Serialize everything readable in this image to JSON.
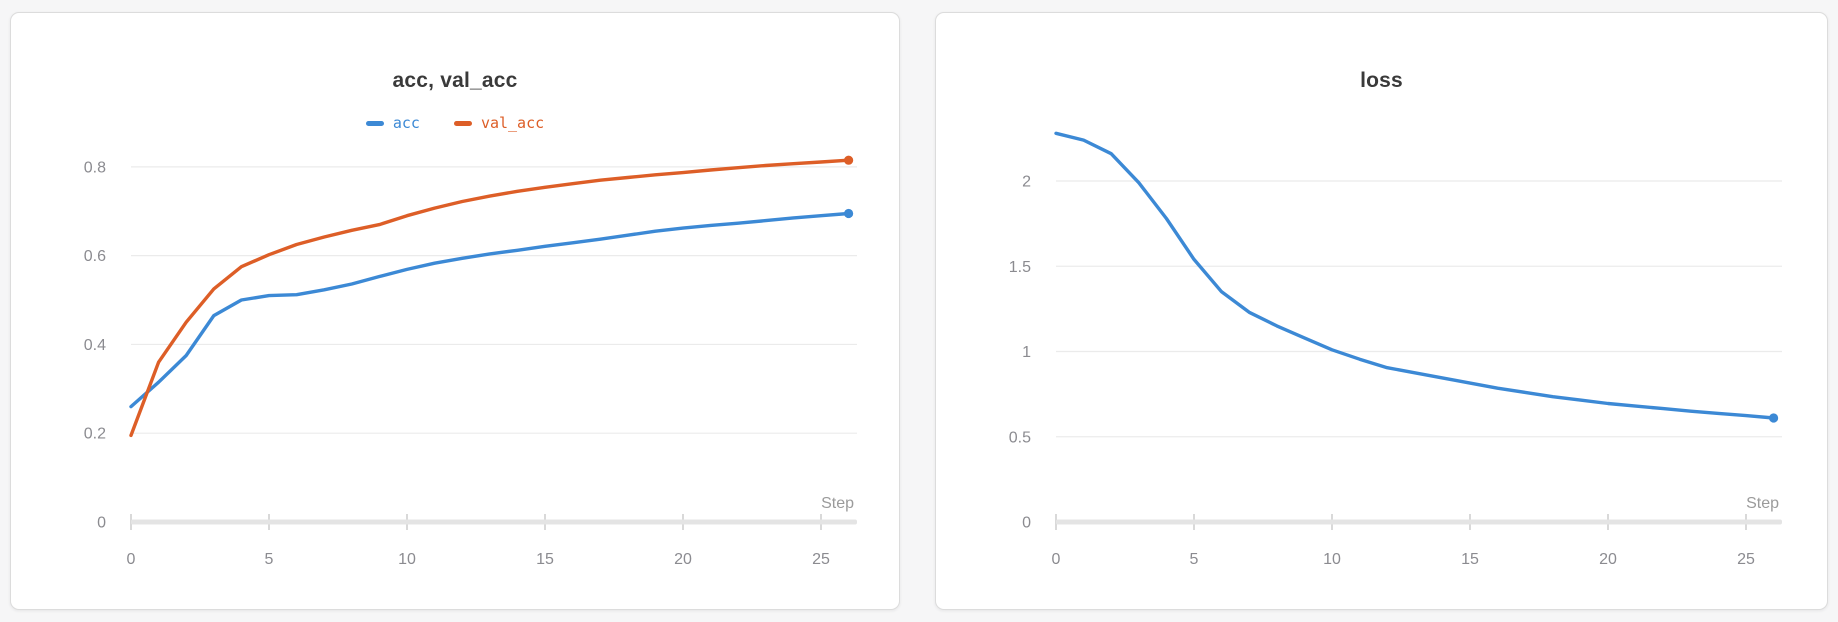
{
  "page": {
    "background": "#f6f6f7"
  },
  "panels": [
    {
      "title": "acc, val_acc",
      "has_legend": true
    },
    {
      "title": "loss",
      "has_legend": false
    }
  ],
  "chart_data": [
    {
      "type": "line",
      "title": "acc, val_acc",
      "xlabel": "Step",
      "ylabel": "",
      "xlim": [
        0,
        26.2
      ],
      "ylim": [
        0,
        0.8875
      ],
      "grid": "horizontal",
      "legend_position": "top-center",
      "x": [
        0,
        1,
        2,
        3,
        4,
        5,
        6,
        7,
        8,
        9,
        10,
        11,
        12,
        13,
        14,
        15,
        16,
        17,
        18,
        19,
        20,
        21,
        22,
        23,
        24,
        25,
        26
      ],
      "xticks": [
        {
          "value": 0,
          "label": "0"
        },
        {
          "value": 5,
          "label": "5"
        },
        {
          "value": 10,
          "label": "10"
        },
        {
          "value": 15,
          "label": "15"
        },
        {
          "value": 20,
          "label": "20"
        },
        {
          "value": 25,
          "label": "25"
        }
      ],
      "yticks": [
        {
          "value": 0,
          "label": "0"
        },
        {
          "value": 0.2,
          "label": "0.2"
        },
        {
          "value": 0.4,
          "label": "0.4"
        },
        {
          "value": 0.6,
          "label": "0.6"
        },
        {
          "value": 0.8,
          "label": "0.8"
        }
      ],
      "series": [
        {
          "name": "acc",
          "color": "#3c89d5",
          "values": [
            0.26,
            0.315,
            0.375,
            0.465,
            0.5,
            0.51,
            0.512,
            0.523,
            0.536,
            0.553,
            0.569,
            0.583,
            0.594,
            0.604,
            0.612,
            0.621,
            0.629,
            0.637,
            0.646,
            0.655,
            0.662,
            0.668,
            0.673,
            0.679,
            0.685,
            0.69,
            0.695
          ]
        },
        {
          "name": "val_acc",
          "color": "#dd5e27",
          "values": [
            0.195,
            0.36,
            0.45,
            0.525,
            0.575,
            0.602,
            0.625,
            0.642,
            0.657,
            0.67,
            0.69,
            0.707,
            0.722,
            0.734,
            0.745,
            0.754,
            0.762,
            0.77,
            0.776,
            0.782,
            0.787,
            0.793,
            0.798,
            0.803,
            0.807,
            0.811,
            0.815
          ]
        }
      ],
      "colors": {
        "grid": "#ebebeb",
        "axis_bar": "#e4e4e4",
        "tick_mark": "#d9d9d9",
        "tick_text": "#8b8b90",
        "step_text": "#9b9b9b"
      }
    },
    {
      "type": "line",
      "title": "loss",
      "xlabel": "Step",
      "ylabel": "",
      "xlim": [
        0,
        26.2
      ],
      "ylim": [
        0,
        2.311
      ],
      "grid": "horizontal",
      "legend_position": "none",
      "x": [
        0,
        1,
        2,
        3,
        4,
        5,
        6,
        7,
        8,
        9,
        10,
        11,
        12,
        13,
        14,
        15,
        16,
        17,
        18,
        19,
        20,
        21,
        22,
        23,
        24,
        25,
        26
      ],
      "xticks": [
        {
          "value": 0,
          "label": "0"
        },
        {
          "value": 5,
          "label": "5"
        },
        {
          "value": 10,
          "label": "10"
        },
        {
          "value": 15,
          "label": "15"
        },
        {
          "value": 20,
          "label": "20"
        },
        {
          "value": 25,
          "label": "25"
        }
      ],
      "yticks": [
        {
          "value": 0,
          "label": "0"
        },
        {
          "value": 0.5,
          "label": "0.5"
        },
        {
          "value": 1,
          "label": "1"
        },
        {
          "value": 1.5,
          "label": "1.5"
        },
        {
          "value": 2,
          "label": "2"
        }
      ],
      "series": [
        {
          "name": "loss",
          "color": "#3c89d5",
          "values": [
            2.28,
            2.24,
            2.16,
            1.99,
            1.78,
            1.54,
            1.35,
            1.23,
            1.15,
            1.08,
            1.01,
            0.955,
            0.905,
            0.875,
            0.845,
            0.815,
            0.785,
            0.76,
            0.735,
            0.715,
            0.695,
            0.68,
            0.665,
            0.65,
            0.637,
            0.624,
            0.61
          ]
        }
      ],
      "colors": {
        "grid": "#ebebeb",
        "axis_bar": "#e4e4e4",
        "tick_mark": "#d9d9d9",
        "tick_text": "#8b8b90",
        "step_text": "#9b9b9b"
      }
    }
  ]
}
